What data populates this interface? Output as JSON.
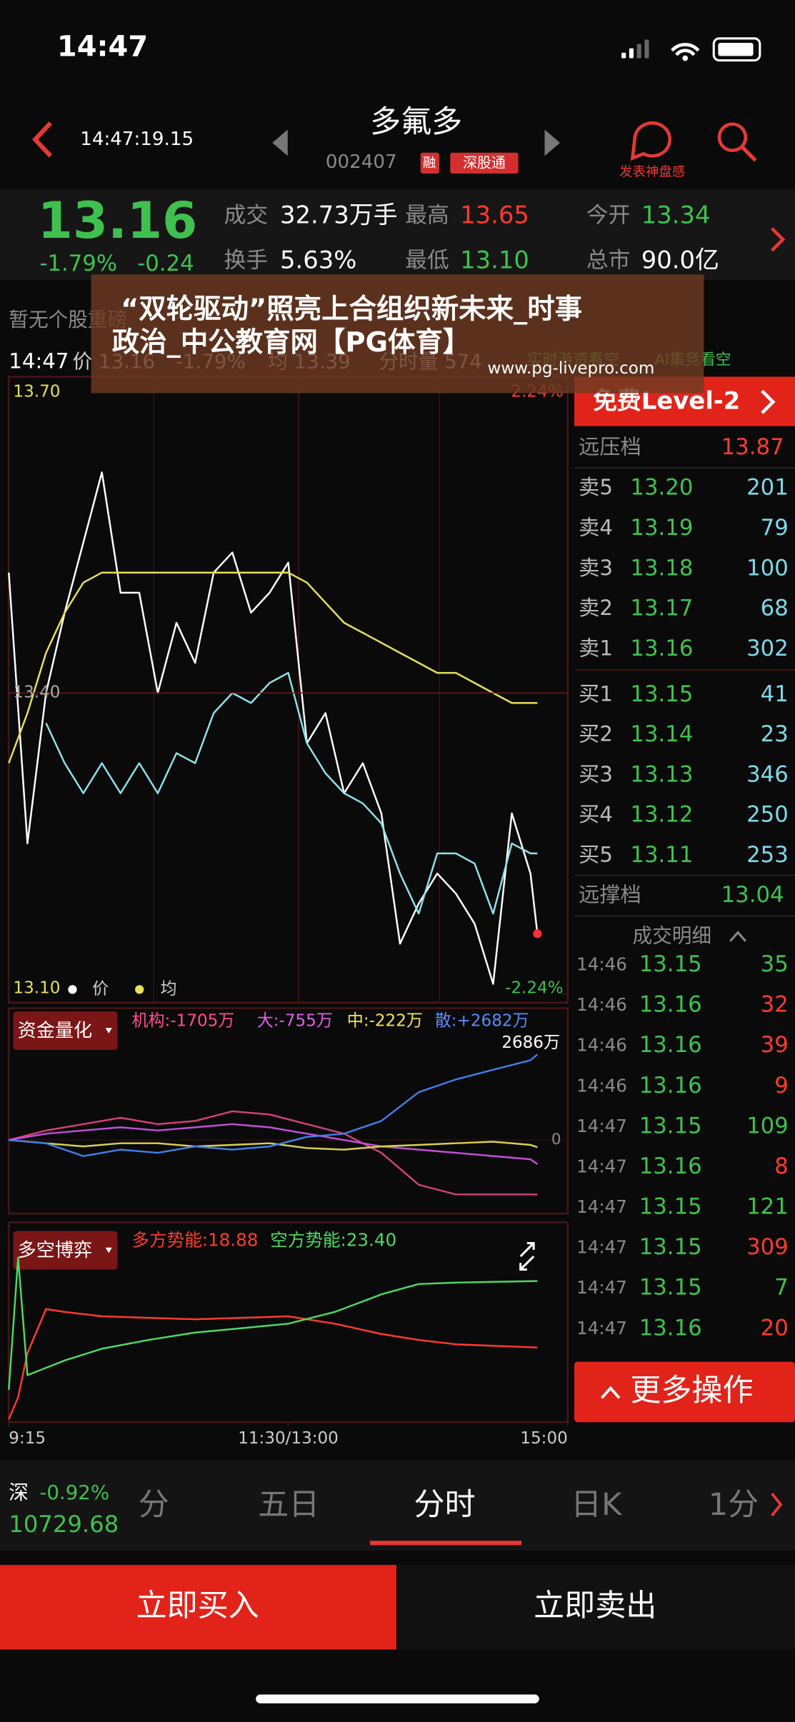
{
  "status_bar": {
    "time": "14:47"
  },
  "header": {
    "timestamp": "14:47:19.15",
    "name": "多氟多",
    "code": "002407",
    "badge_margin": "融",
    "badge_connect": "深股通",
    "comment": "发表神盘感"
  },
  "quote": {
    "price": "13.16",
    "change_pct": "-1.79%",
    "change": "-0.24",
    "stats": [
      {
        "label": "成交",
        "value": "32.73万手",
        "color": "#ffffff"
      },
      {
        "label": "最高",
        "value": "13.65",
        "color": "#ff3b30"
      },
      {
        "label": "今开",
        "value": "13.34",
        "color": "#3fc14f"
      },
      {
        "label": "换手",
        "value": "5.63%",
        "color": "#ffffff"
      },
      {
        "label": "最低",
        "value": "13.10",
        "color": "#3fc14f"
      },
      {
        "label": "总市",
        "value": "90.0亿",
        "color": "#ffffff"
      }
    ]
  },
  "notice": "暂无个股重磅",
  "intraday_bar": {
    "time": "14:47",
    "price": "价 13.16",
    "pct": "-1.79%",
    "avg": "均 13.39",
    "volume": "分时量 574",
    "signal": "实时游资看空",
    "ai": "AI集竞看空"
  },
  "overlay": {
    "title": [
      "“双轮驱动”照亮上合组织新未来_时事",
      "政治_中公教育网【PG体育】"
    ],
    "url": "www.pg-livepro.com"
  },
  "chart_data": [
    {
      "type": "line",
      "x": [
        0,
        8,
        16,
        24,
        32,
        40,
        48,
        56,
        64,
        72,
        80,
        88,
        96,
        104,
        112,
        120,
        128,
        136,
        144,
        152,
        160,
        168,
        176,
        184,
        192,
        200,
        208,
        216,
        224,
        227
      ],
      "xlim": [
        0,
        240
      ],
      "xticks": [
        {
          "value": 0,
          "label": "9:15"
        },
        {
          "value": 120,
          "label": "11:30/13:00"
        },
        {
          "value": 240,
          "label": "15:00"
        }
      ],
      "ylim": [
        13.1,
        13.7
      ],
      "yticks": [
        {
          "value": 13.7,
          "label": "13.70"
        },
        {
          "value": 13.4,
          "label": "13.40"
        },
        {
          "value": 13.1,
          "label": "13.10"
        }
      ],
      "y2lim": [
        -2.24,
        2.24
      ],
      "y2ticks": [
        {
          "value": 2.24,
          "label": "2.24%"
        },
        {
          "value": -2.24,
          "label": "-2.24%"
        }
      ],
      "series": [
        {
          "name": "价",
          "color": "#ffffff",
          "values": [
            13.52,
            13.25,
            13.4,
            13.48,
            13.55,
            13.62,
            13.5,
            13.5,
            13.4,
            13.47,
            13.43,
            13.52,
            13.54,
            13.48,
            13.5,
            13.53,
            13.35,
            13.38,
            13.3,
            13.33,
            13.28,
            13.15,
            13.19,
            13.22,
            13.2,
            13.17,
            13.11,
            13.28,
            13.22,
            13.16
          ]
        },
        {
          "name": "均",
          "color": "#e6e05a",
          "values": [
            13.33,
            13.38,
            13.44,
            13.48,
            13.51,
            13.52,
            13.52,
            13.52,
            13.52,
            13.52,
            13.52,
            13.52,
            13.52,
            13.52,
            13.52,
            13.52,
            13.51,
            13.49,
            13.47,
            13.46,
            13.45,
            13.44,
            13.43,
            13.42,
            13.42,
            13.41,
            13.4,
            13.39,
            13.39,
            13.39
          ]
        },
        {
          "color": "#8fe3ea",
          "values": [
            null,
            null,
            13.37,
            13.33,
            13.3,
            13.33,
            13.3,
            13.33,
            13.3,
            13.34,
            13.33,
            13.38,
            13.4,
            13.39,
            13.41,
            13.42,
            13.35,
            13.32,
            13.3,
            13.29,
            13.27,
            13.22,
            13.18,
            13.24,
            13.24,
            13.23,
            13.18,
            13.25,
            13.24,
            13.24
          ]
        }
      ]
    },
    {
      "type": "line",
      "tab": "资金量化",
      "legend": [
        {
          "text": "机构:-1705万",
          "color": "#ff4f8f"
        },
        {
          "text": "大:-755万",
          "color": "#e060e8"
        },
        {
          "text": "中:-222万",
          "color": "#f0e45a"
        },
        {
          "text": "散:+2682万",
          "color": "#5b8cff"
        }
      ],
      "annotation": "2686万",
      "x": [
        0,
        16,
        32,
        48,
        64,
        80,
        96,
        112,
        128,
        144,
        160,
        176,
        192,
        208,
        224,
        227
      ],
      "xlim": [
        0,
        240
      ],
      "ylim": [
        -2300,
        4130
      ],
      "yticks": [
        0
      ],
      "series": [
        {
          "color": "#d4407a",
          "values": [
            0,
            300,
            500,
            700,
            500,
            600,
            900,
            800,
            500,
            200,
            -400,
            -1400,
            -1700,
            -1700,
            -1700,
            -1705
          ]
        },
        {
          "color": "#c050d8",
          "values": [
            0,
            200,
            300,
            400,
            300,
            400,
            500,
            400,
            200,
            0,
            -200,
            -300,
            -400,
            -500,
            -600,
            -755
          ]
        },
        {
          "color": "#d8d050",
          "values": [
            0,
            -100,
            -200,
            -100,
            -100,
            -200,
            -150,
            -100,
            -250,
            -300,
            -200,
            -150,
            -100,
            -50,
            -150,
            -222
          ]
        },
        {
          "color": "#3f7fe8",
          "values": [
            0,
            -100,
            -500,
            -300,
            -400,
            -200,
            -300,
            -200,
            100,
            200,
            600,
            1500,
            1900,
            2200,
            2500,
            2682
          ]
        }
      ]
    },
    {
      "type": "line",
      "tab": "多空博弈",
      "legend": [
        {
          "text": "多方势能:18.88",
          "color": "#ff3b30"
        },
        {
          "text": "空方势能:23.40",
          "color": "#4cd964"
        }
      ],
      "x": [
        0,
        4,
        8,
        16,
        24,
        40,
        60,
        80,
        100,
        120,
        140,
        160,
        176,
        192,
        208,
        227
      ],
      "xlim": [
        0,
        240
      ],
      "ylim": [
        13.8,
        27.4
      ],
      "series": [
        {
          "color": "#ff3b30",
          "values": [
            14,
            15.5,
            18.5,
            21.5,
            21.3,
            21,
            20.9,
            20.8,
            20.9,
            21,
            20.5,
            19.8,
            19.4,
            19.1,
            19,
            18.88
          ]
        },
        {
          "color": "#4cd964",
          "values": [
            16,
            25,
            17,
            17.5,
            18,
            18.8,
            19.4,
            19.9,
            20.2,
            20.5,
            21.3,
            22.5,
            23.2,
            23.3,
            23.35,
            23.4
          ]
        }
      ]
    }
  ],
  "order_book": {
    "banner": "免费Level-2",
    "far_ask": {
      "label": "远压档",
      "price": "13.87"
    },
    "asks": [
      {
        "label": "卖5",
        "price": "13.20",
        "volume": "201"
      },
      {
        "label": "卖4",
        "price": "13.19",
        "volume": "79"
      },
      {
        "label": "卖3",
        "price": "13.18",
        "volume": "100"
      },
      {
        "label": "卖2",
        "price": "13.17",
        "volume": "68"
      },
      {
        "label": "卖1",
        "price": "13.16",
        "volume": "302"
      }
    ],
    "bids": [
      {
        "label": "买1",
        "price": "13.15",
        "volume": "41"
      },
      {
        "label": "买2",
        "price": "13.14",
        "volume": "23"
      },
      {
        "label": "买3",
        "price": "13.13",
        "volume": "346"
      },
      {
        "label": "买4",
        "price": "13.12",
        "volume": "250"
      },
      {
        "label": "买5",
        "price": "13.11",
        "volume": "253"
      }
    ],
    "far_bid": {
      "label": "远撑档",
      "price": "13.04"
    },
    "trades_title": "成交明细",
    "trades": [
      {
        "time": "14:46",
        "price": "13.15",
        "volume": "35",
        "color": "#3fc14f"
      },
      {
        "time": "14:46",
        "price": "13.16",
        "volume": "32",
        "color": "#ff3b30"
      },
      {
        "time": "14:46",
        "price": "13.16",
        "volume": "39",
        "color": "#ff3b30"
      },
      {
        "time": "14:46",
        "price": "13.16",
        "volume": "9",
        "color": "#ff3b30"
      },
      {
        "time": "14:47",
        "price": "13.15",
        "volume": "109",
        "color": "#3fc14f"
      },
      {
        "time": "14:47",
        "price": "13.16",
        "volume": "8",
        "color": "#ff3b30"
      },
      {
        "time": "14:47",
        "price": "13.15",
        "volume": "121",
        "color": "#3fc14f"
      },
      {
        "time": "14:47",
        "price": "13.15",
        "volume": "309",
        "color": "#ff3b30"
      },
      {
        "time": "14:47",
        "price": "13.15",
        "volume": "7",
        "color": "#3fc14f"
      },
      {
        "time": "14:47",
        "price": "13.16",
        "volume": "20",
        "color": "#ff3b30"
      }
    ]
  },
  "more_button": "更多操作",
  "index_ticker": {
    "name": "深",
    "change": "-0.92%",
    "value": "10729.68"
  },
  "tabs": [
    "分",
    "五日",
    "分时",
    "日K",
    "1分"
  ],
  "active_tab": 2,
  "actions": {
    "buy": "立即买入",
    "sell": "立即卖出"
  }
}
